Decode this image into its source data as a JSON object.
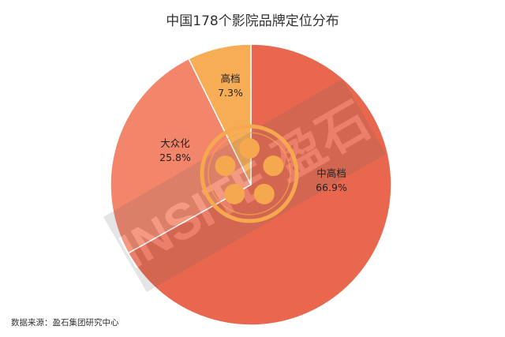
{
  "chart_data": {
    "type": "pie",
    "title": "中国178个影院品牌定位分布",
    "slices": [
      {
        "label": "中高档",
        "value": 66.9,
        "value_label": "66.9%",
        "color": "#E8674E"
      },
      {
        "label": "大众化",
        "value": 25.8,
        "value_label": "25.8%",
        "color": "#F2856A"
      },
      {
        "label": "高档",
        "value": 7.3,
        "value_label": "7.3%",
        "color": "#F7AD55"
      }
    ],
    "legend": "none",
    "center_emblem_color": "#F5A84E"
  },
  "source": "数据来源：盈石集团研究中心",
  "watermark": "INSITE 盈石"
}
